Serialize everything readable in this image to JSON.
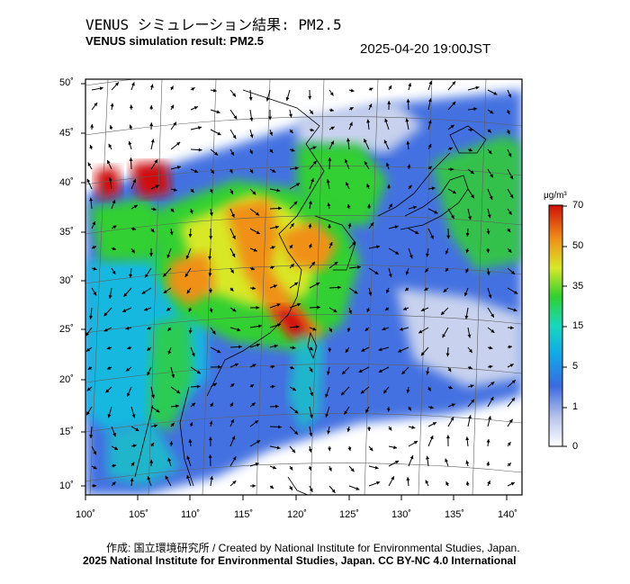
{
  "header": {
    "title_jp": "VENUS シミュレーション結果: PM2.5",
    "title_en": "VENUS simulation result: PM2.5",
    "timestamp": "2025-04-20 19:00JST"
  },
  "map": {
    "lat_labels": [
      "50˚",
      "45˚",
      "40˚",
      "35˚",
      "30˚",
      "25˚",
      "20˚",
      "15˚",
      "10˚"
    ],
    "lon_labels": [
      "100˚",
      "105˚",
      "110˚",
      "115˚",
      "120˚",
      "125˚",
      "130˚",
      "135˚",
      "140˚"
    ]
  },
  "colorbar": {
    "unit": "μg/m³",
    "ticks": [
      "70",
      "50",
      "35",
      "15",
      "5",
      "1",
      "0"
    ]
  },
  "footer": {
    "credit_jp": "作成: 国立環境研究所 / Created by National Institute for Environmental Studies, Japan.",
    "copyright": "2025 National Institute for Environmental Studies, Japan. CC BY-NC 4.0 International"
  },
  "colors": {
    "low": "#c8d2ee",
    "mid_low": "#2860d8",
    "mid": "#18c8c8",
    "mid_high": "#30d030",
    "high": "#f0e030",
    "very_high": "#e03010"
  }
}
